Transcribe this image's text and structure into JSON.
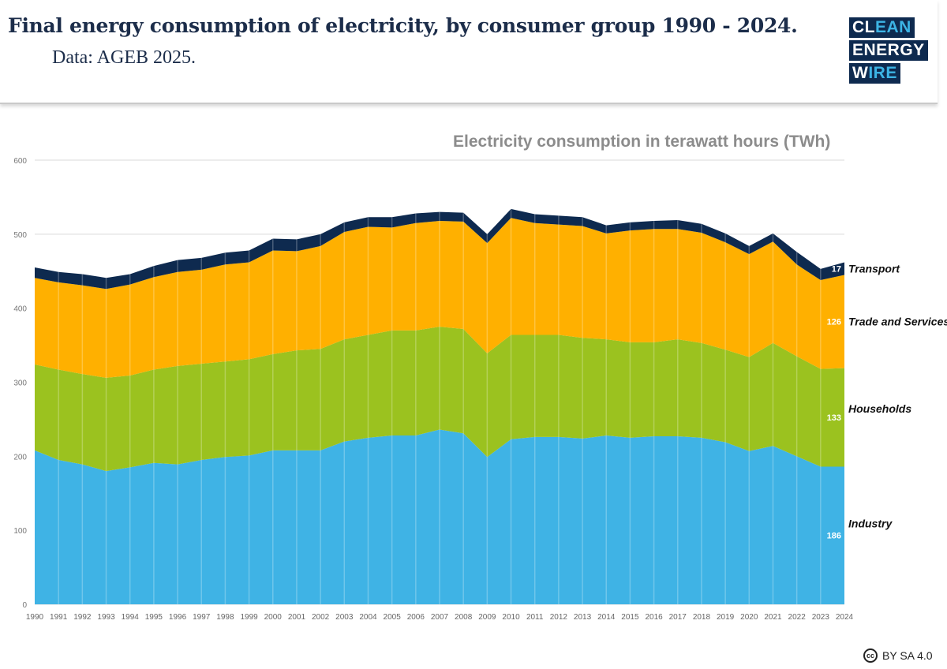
{
  "header": {
    "title": "Final energy consumption of electricity, by consumer group 1990 - 2024.",
    "subtitle": "Data: AGEB 2025."
  },
  "logo": {
    "line1a": "CL",
    "line1b": "EAN",
    "line2": "ENERGY",
    "line3a": "W",
    "line3b": "IRE"
  },
  "license": {
    "icon": "cc-icon",
    "icon_text": "cc",
    "text": "BY SA 4.0"
  },
  "chart_data": {
    "type": "area",
    "stacked": true,
    "title": "Electricity consumption in terawatt hours (TWh)",
    "xlabel": "",
    "ylabel": "",
    "ylim": [
      0,
      600
    ],
    "yticks": [
      0,
      100,
      200,
      300,
      400,
      500,
      600
    ],
    "grid": true,
    "categories": [
      1990,
      1991,
      1992,
      1993,
      1994,
      1995,
      1996,
      1997,
      1998,
      1999,
      2000,
      2001,
      2002,
      2003,
      2004,
      2005,
      2006,
      2007,
      2008,
      2009,
      2010,
      2011,
      2012,
      2013,
      2014,
      2015,
      2016,
      2017,
      2018,
      2019,
      2020,
      2021,
      2022,
      2023,
      2024
    ],
    "series": [
      {
        "name": "Industry",
        "color": "#3fb3e5",
        "label": "186",
        "values": [
          208,
          195,
          189,
          180,
          185,
          191,
          189,
          195,
          199,
          201,
          208,
          208,
          208,
          220,
          225,
          228,
          228,
          236,
          231,
          199,
          223,
          226,
          226,
          224,
          228,
          225,
          227,
          227,
          225,
          219,
          207,
          214,
          200,
          186,
          186
        ]
      },
      {
        "name": "Households",
        "color": "#9bc21f",
        "label": "133",
        "values": [
          116,
          122,
          122,
          126,
          124,
          126,
          133,
          130,
          129,
          130,
          130,
          135,
          137,
          138,
          139,
          142,
          142,
          139,
          141,
          140,
          141,
          138,
          138,
          136,
          130,
          129,
          127,
          131,
          128,
          125,
          127,
          139,
          135,
          132,
          133
        ]
      },
      {
        "name": "Trade and Services",
        "color": "#ffb000",
        "label": "126",
        "values": [
          117,
          118,
          120,
          120,
          123,
          125,
          127,
          127,
          131,
          131,
          140,
          134,
          139,
          145,
          146,
          139,
          145,
          143,
          145,
          149,
          158,
          151,
          149,
          151,
          143,
          151,
          153,
          149,
          149,
          145,
          139,
          137,
          124,
          120,
          126
        ]
      },
      {
        "name": "Transport",
        "color": "#0e2a4f",
        "label": "17",
        "values": [
          14,
          14,
          15,
          15,
          14,
          15,
          16,
          16,
          16,
          16,
          16,
          16,
          16,
          13,
          13,
          14,
          13,
          12,
          12,
          12,
          12,
          12,
          12,
          12,
          11,
          11,
          11,
          12,
          12,
          12,
          11,
          11,
          17,
          15,
          17
        ]
      }
    ]
  }
}
